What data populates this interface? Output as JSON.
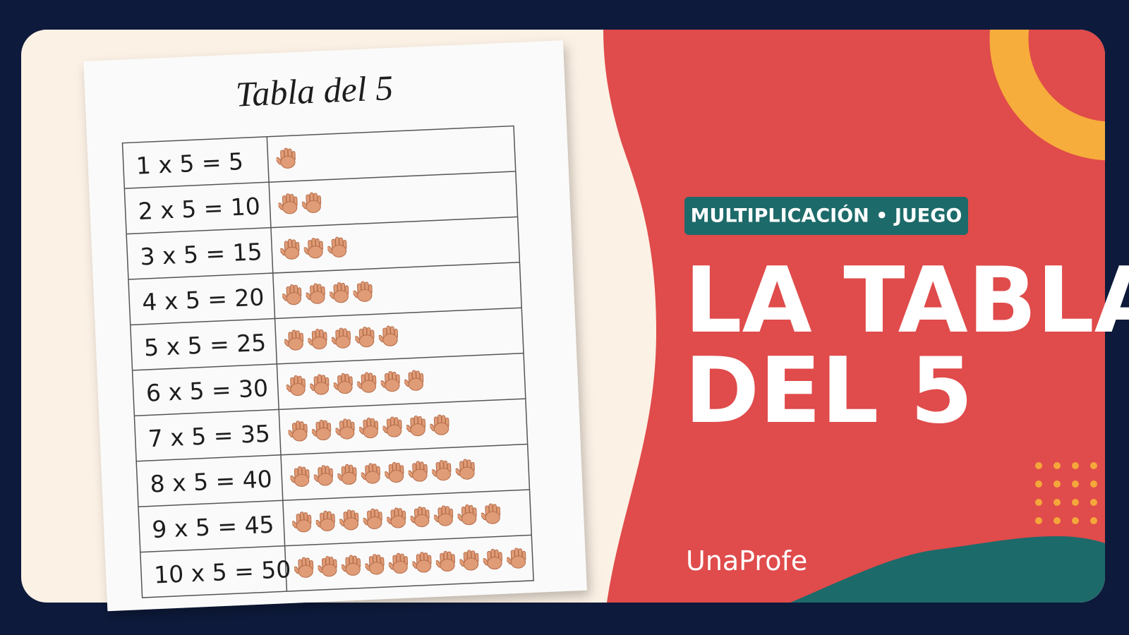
{
  "worksheet": {
    "title": "Tabla del 5",
    "rows": [
      {
        "equation": "1 x 5 = 5",
        "hands": 1
      },
      {
        "equation": "2 x 5 = 10",
        "hands": 2
      },
      {
        "equation": "3 x 5 = 15",
        "hands": 3
      },
      {
        "equation": "4 x 5 = 20",
        "hands": 4
      },
      {
        "equation": "5 x 5 = 25",
        "hands": 5
      },
      {
        "equation": "6 x 5 = 30",
        "hands": 6
      },
      {
        "equation": "7 x 5 = 35",
        "hands": 7
      },
      {
        "equation": "8 x 5 = 40",
        "hands": 8
      },
      {
        "equation": "9 x 5 = 45",
        "hands": 9
      },
      {
        "equation": "10 x 5 = 50",
        "hands": 10
      }
    ]
  },
  "badge": "MULTIPLICACIÓN • JUEGO",
  "headline": [
    "LA TABLA",
    "DEL 5"
  ],
  "brand": "UnaProfe"
}
